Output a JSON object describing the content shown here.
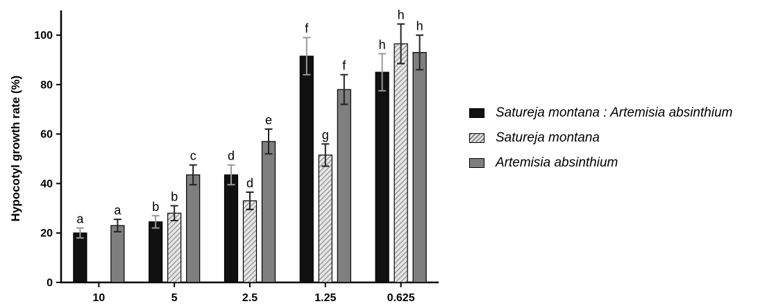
{
  "chart_data": {
    "type": "bar",
    "ylabel": "Hypocotyl growth rate (%)",
    "xlabel": "",
    "ylim": [
      0,
      110
    ],
    "yticks": [
      "0",
      "20",
      "40",
      "60",
      "80",
      "100"
    ],
    "categories": [
      "10",
      "5",
      "2.5",
      "1.25",
      "0.625"
    ],
    "series": [
      {
        "name": "Satureja montana : Artemisia absinthium",
        "fill": "#111111",
        "pattern": "solid",
        "values": [
          20,
          24.5,
          43.5,
          91.5,
          85
        ],
        "errors": [
          2,
          2.5,
          4,
          7.5,
          7.5
        ],
        "letters": [
          "a",
          "b",
          "d",
          "f",
          "h"
        ]
      },
      {
        "name": "Satureja montana",
        "fill": "#bdbdbd",
        "pattern": "hatched",
        "values": [
          null,
          28,
          33,
          51.5,
          96.5
        ],
        "errors": [
          null,
          3,
          3.5,
          4.5,
          8
        ],
        "letters": [
          null,
          "b",
          "d",
          "g",
          "h"
        ]
      },
      {
        "name": "Artemisia absinthium",
        "fill": "#7f7f7f",
        "pattern": "solid",
        "values": [
          23,
          43.5,
          57,
          78,
          93
        ],
        "errors": [
          2.5,
          4,
          5,
          6,
          7
        ],
        "letters": [
          "a",
          "c",
          "e",
          "f",
          "h"
        ]
      }
    ],
    "legend_position": "right",
    "grid": false
  }
}
